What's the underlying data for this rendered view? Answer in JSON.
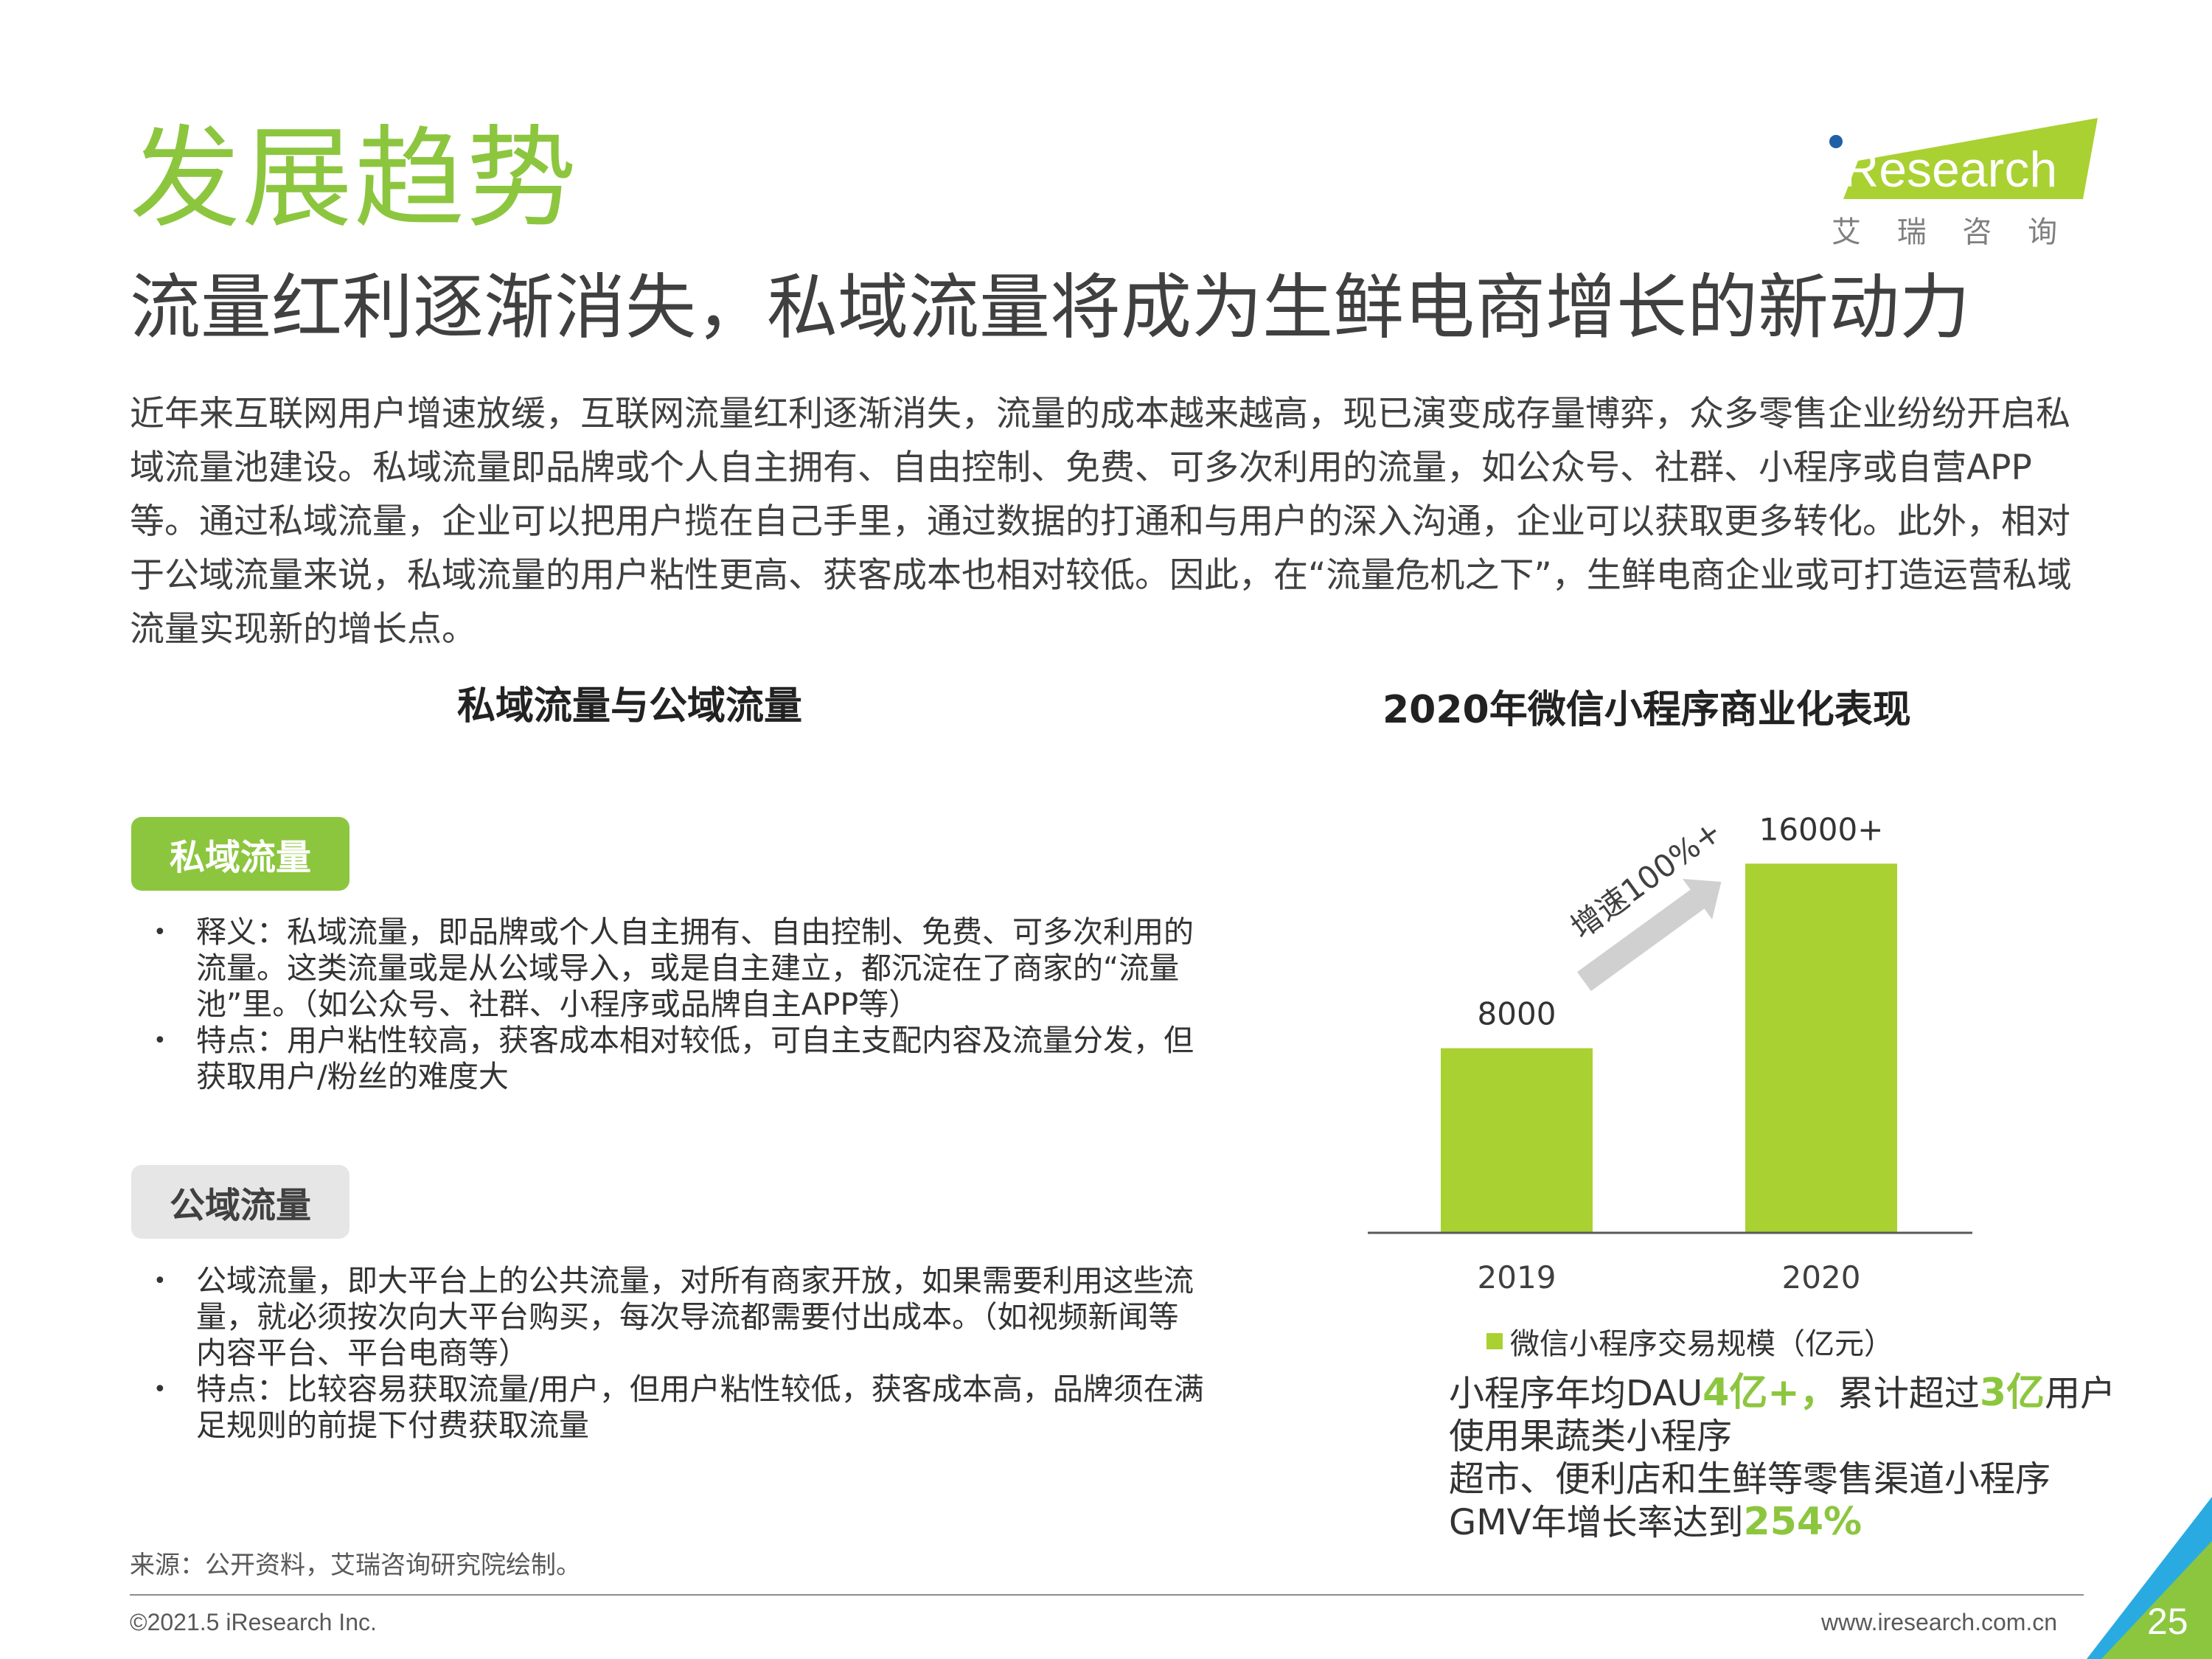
{
  "header": {
    "section_title": "发展趋势",
    "headline": "流量红利逐渐消失，私域流量将成为生鲜电商增长的新动力"
  },
  "logo": {
    "brand": "iResearch",
    "chinese_name": "艾 瑞 咨 询",
    "brand_color": "#a9d132"
  },
  "intro": "近年来互联网用户增速放缓，互联网流量红利逐渐消失，流量的成本越来越高，现已演变成存量博弈，众多零售企业纷纷开启私域流量池建设。私域流量即品牌或个人自主拥有、自由控制、免费、可多次利用的流量，如公众号、社群、小程序或自营APP等。通过私域流量，企业可以把用户揽在自己手里，通过数据的打通和与用户的深入沟通，企业可以获取更多转化。此外，相对于公域流量来说，私域流量的用户粘性更高、获客成本也相对较低。因此，在“流量危机之下”，生鲜电商企业或可打造运营私域流量实现新的增长点。",
  "left_panel": {
    "title": "私域流量与公域流量",
    "private": {
      "tag": "私域流量",
      "bullets": [
        "释义：私域流量，即品牌或个人自主拥有、自由控制、免费、可多次利用的流量。这类流量或是从公域导入，或是自主建立，都沉淀在了商家的“流量池”里。（如公众号、社群、小程序或品牌自主APP等）",
        "特点：用户粘性较高，获客成本相对较低，可自主支配内容及流量分发，但获取用户/粉丝的难度大"
      ]
    },
    "public": {
      "tag": "公域流量",
      "bullets": [
        "公域流量，即大平台上的公共流量，对所有商家开放，如果需要利用这些流量，就必须按次向大平台购买，每次导流都需要付出成本。（如视频新闻等内容平台、平台电商等）",
        "特点：比较容易获取流量/用户，但用户粘性较低，获客成本高，品牌须在满足规则的前提下付费获取流量"
      ]
    }
  },
  "right_panel": {
    "title": "2020年微信小程序商业化表现",
    "growth_label": "增速100%+",
    "stats": {
      "line1_pre": "小程序年均DAU",
      "line1_hl1": "4亿+，",
      "line1_mid": "累计超过",
      "line1_hl2": "3亿",
      "line1_post": "用户",
      "line2": "使用果蔬类小程序",
      "line3": "超市、便利店和生鲜等零售渠道小程序",
      "line4_pre": "GMV年增长率达到",
      "line4_hl": "254%"
    }
  },
  "chart_data": {
    "type": "bar",
    "categories": [
      "2019",
      "2020"
    ],
    "series": [
      {
        "name": "微信小程序交易规模（亿元）",
        "values": [
          8000,
          16000
        ],
        "labels": [
          "8000",
          "16000+"
        ]
      }
    ],
    "ylim": [
      0,
      17000
    ],
    "bar_color": "#a9d132",
    "legend": "bottom"
  },
  "footer": {
    "source": "来源：公开资料，艾瑞咨询研究院绘制。",
    "copyright": "©2021.5 iResearch Inc.",
    "website": "www.iresearch.com.cn",
    "page_number": "25"
  }
}
